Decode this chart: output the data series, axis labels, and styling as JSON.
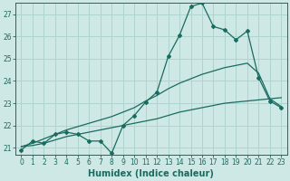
{
  "xlabel": "Humidex (Indice chaleur)",
  "ylabel": "",
  "bg_color": "#cde8e5",
  "grid_color": "#afd4cf",
  "line_color": "#1a6b60",
  "xlim": [
    -0.5,
    23.5
  ],
  "ylim": [
    20.7,
    27.5
  ],
  "yticks": [
    21,
    22,
    23,
    24,
    25,
    26,
    27
  ],
  "xticks": [
    0,
    1,
    2,
    3,
    4,
    5,
    6,
    7,
    8,
    9,
    10,
    11,
    12,
    13,
    14,
    15,
    16,
    17,
    18,
    19,
    20,
    21,
    22,
    23
  ],
  "series1_x": [
    0,
    1,
    2,
    3,
    4,
    5,
    6,
    7,
    8,
    9,
    10,
    11,
    12,
    13,
    14,
    15,
    16,
    17,
    18,
    19,
    20,
    21,
    22,
    23
  ],
  "series1_y": [
    20.9,
    21.3,
    21.2,
    21.6,
    21.7,
    21.6,
    21.3,
    21.3,
    20.75,
    22.0,
    22.45,
    23.05,
    23.5,
    25.1,
    26.05,
    27.35,
    27.5,
    26.45,
    26.3,
    25.85,
    26.25,
    24.15,
    23.1,
    22.8
  ],
  "series2_x": [
    0,
    1,
    2,
    3,
    4,
    5,
    6,
    7,
    8,
    9,
    10,
    11,
    12,
    13,
    14,
    15,
    16,
    17,
    18,
    19,
    20,
    21,
    22,
    23
  ],
  "series2_y": [
    21.05,
    21.1,
    21.2,
    21.35,
    21.5,
    21.6,
    21.7,
    21.8,
    21.9,
    22.0,
    22.1,
    22.2,
    22.3,
    22.45,
    22.6,
    22.7,
    22.8,
    22.9,
    23.0,
    23.05,
    23.1,
    23.15,
    23.2,
    23.25
  ],
  "series3_x": [
    0,
    1,
    2,
    3,
    4,
    5,
    6,
    7,
    8,
    9,
    10,
    11,
    12,
    13,
    14,
    15,
    16,
    17,
    18,
    19,
    20,
    21,
    22,
    23
  ],
  "series3_y": [
    21.05,
    21.2,
    21.4,
    21.6,
    21.8,
    21.95,
    22.1,
    22.25,
    22.4,
    22.6,
    22.8,
    23.1,
    23.35,
    23.65,
    23.9,
    24.1,
    24.3,
    24.45,
    24.6,
    24.7,
    24.8,
    24.35,
    23.2,
    22.85
  ],
  "tick_fontsize": 5.5,
  "label_fontsize": 7.0
}
